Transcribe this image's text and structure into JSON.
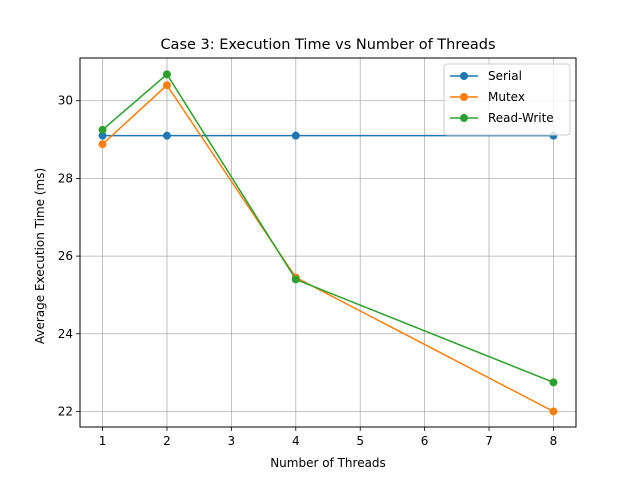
{
  "chart_data": {
    "type": "line",
    "title": "Case 3: Execution Time vs Number of Threads",
    "xlabel": "Number of Threads",
    "ylabel": "Average Execution Time (ms)",
    "xlim": [
      0.65,
      8.35
    ],
    "ylim": [
      21.6,
      31.1
    ],
    "xticks": [
      1,
      2,
      3,
      4,
      5,
      6,
      7,
      8
    ],
    "yticks": [
      22,
      24,
      26,
      28,
      30
    ],
    "grid": true,
    "legend_position": "top-right",
    "series": [
      {
        "name": "Serial",
        "color": "#1f77b4",
        "x": [
          1,
          2,
          4,
          8
        ],
        "y": [
          29.1,
          29.1,
          29.1,
          29.1
        ]
      },
      {
        "name": "Mutex",
        "color": "#ff7f0e",
        "x": [
          1,
          2,
          4,
          8
        ],
        "y": [
          28.88,
          30.4,
          25.45,
          22.0
        ]
      },
      {
        "name": "Read-Write",
        "color": "#2ca02c",
        "x": [
          1,
          2,
          4,
          8
        ],
        "y": [
          29.25,
          30.68,
          25.4,
          22.75
        ]
      }
    ]
  }
}
